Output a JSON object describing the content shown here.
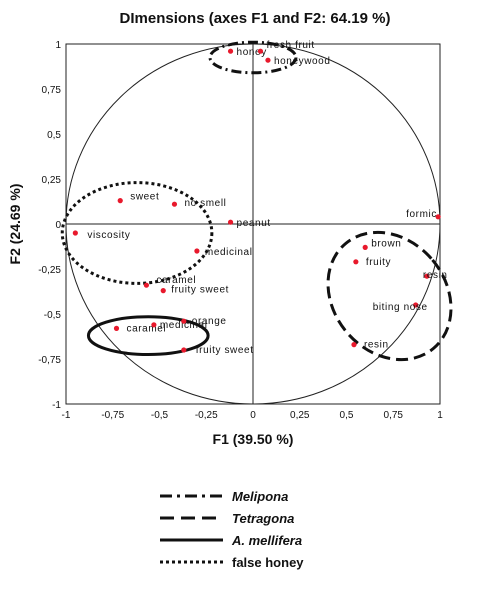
{
  "chart_data": {
    "type": "scatter",
    "title": "DImensions (axes F1 and F2: 64.19 %)",
    "xlabel": "F1 (39.50 %)",
    "ylabel": "F2 (24.69 %)",
    "xlim": [
      -1,
      1
    ],
    "ylim": [
      -1,
      1
    ],
    "xticks": [
      "-1",
      "-0,75",
      "-0,5",
      "-0,25",
      "0",
      "0,25",
      "0,5",
      "0,75",
      "1"
    ],
    "yticks": [
      "1",
      "0,75",
      "0,5",
      "0,25",
      "0",
      "-0,25",
      "-0,5",
      "-0,75",
      "-1"
    ],
    "unit_circle": true,
    "points": [
      {
        "label": "honey",
        "x": -0.12,
        "y": 0.96
      },
      {
        "label": "fresh fruit",
        "x": 0.04,
        "y": 0.96
      },
      {
        "label": "honeywood",
        "x": 0.08,
        "y": 0.91
      },
      {
        "label": "sweet",
        "x": -0.71,
        "y": 0.13
      },
      {
        "label": "no smell",
        "x": -0.42,
        "y": 0.11
      },
      {
        "label": "peanut",
        "x": -0.12,
        "y": 0.01
      },
      {
        "label": "viscosity",
        "x": -0.95,
        "y": -0.05
      },
      {
        "label": "medicinal",
        "x": -0.3,
        "y": -0.15
      },
      {
        "label": "caramel",
        "x": -0.57,
        "y": -0.34
      },
      {
        "label": "fruity sweet",
        "x": -0.48,
        "y": -0.37
      },
      {
        "label": "caramel",
        "x": -0.73,
        "y": -0.58
      },
      {
        "label": "medicinal",
        "x": -0.53,
        "y": -0.56
      },
      {
        "label": "orange",
        "x": -0.37,
        "y": -0.54
      },
      {
        "label": "fruity sweet",
        "x": -0.37,
        "y": -0.7
      },
      {
        "label": "formic",
        "x": 0.99,
        "y": 0.04
      },
      {
        "label": "brown",
        "x": 0.6,
        "y": -0.13
      },
      {
        "label": "fruity",
        "x": 0.55,
        "y": -0.21
      },
      {
        "label": "resin",
        "x": 0.93,
        "y": -0.29
      },
      {
        "label": "biting nose",
        "x": 0.87,
        "y": -0.45
      },
      {
        "label": "resin",
        "x": 0.54,
        "y": -0.67
      }
    ],
    "groups": [
      {
        "name": "Melipona",
        "style": "dash-dot"
      },
      {
        "name": "Tetragona",
        "style": "dashed"
      },
      {
        "name": "A. mellifera",
        "style": "solid"
      },
      {
        "name": "false honey",
        "style": "dotted"
      }
    ],
    "point_color": "#e8192c"
  }
}
